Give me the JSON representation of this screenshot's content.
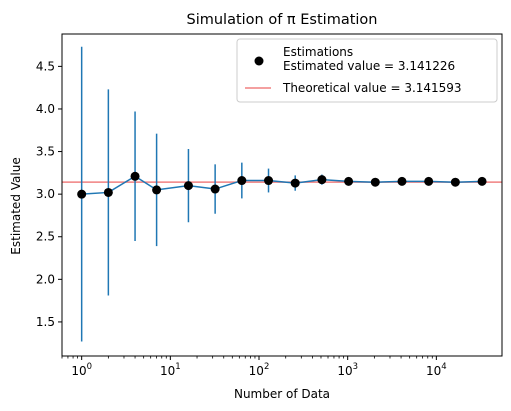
{
  "chart_data": {
    "type": "scatter",
    "title": "Simulation of π Estimation",
    "xlabel": "Number of Data",
    "ylabel": "Estimated Value",
    "xscale": "log",
    "xlim": [
      0.6,
      55000
    ],
    "ylim": [
      1.1,
      4.88
    ],
    "xticks": [
      {
        "value": 1,
        "base": "10",
        "exp": "0"
      },
      {
        "value": 10,
        "base": "10",
        "exp": "1"
      },
      {
        "value": 100,
        "base": "10",
        "exp": "2"
      },
      {
        "value": 1000,
        "base": "10",
        "exp": "3"
      },
      {
        "value": 10000,
        "base": "10",
        "exp": "4"
      }
    ],
    "yticks": [
      "1.5",
      "2.0",
      "2.5",
      "3.0",
      "3.5",
      "4.0",
      "4.5"
    ],
    "grid": false,
    "legend_position": "top-right",
    "series": [
      {
        "name": "Estimations\nEstimated value = 3.141226",
        "marker": "circle",
        "marker_color": "#000000",
        "line_color": "#1f77b4",
        "errorbar_color": "#1f77b4",
        "x": [
          1,
          2,
          4,
          7,
          16,
          32,
          64,
          128,
          256,
          512,
          1024,
          2048,
          4096,
          8192,
          16384,
          32768
        ],
        "y": [
          3.0,
          3.02,
          3.21,
          3.05,
          3.1,
          3.06,
          3.16,
          3.16,
          3.13,
          3.17,
          3.15,
          3.14,
          3.15,
          3.15,
          3.14,
          3.15
        ],
        "err": [
          1.73,
          1.21,
          0.76,
          0.66,
          0.43,
          0.29,
          0.21,
          0.14,
          0.09,
          0.06,
          0.04,
          0.03,
          0.02,
          0.015,
          0.01,
          0.008
        ]
      }
    ],
    "reference_line": {
      "name": "Theoretical value = 3.141593",
      "value": 3.141593,
      "color": "#f08080"
    }
  }
}
